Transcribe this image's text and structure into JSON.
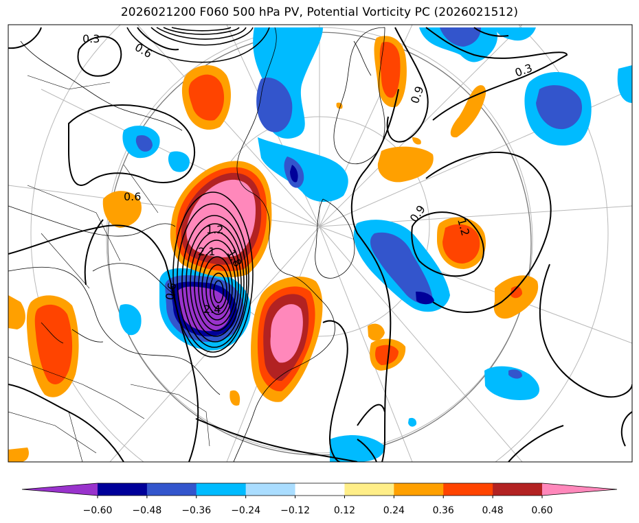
{
  "title": "2026021200 F060 500 hPa PV, Potential Vorticity PC (2026021512)",
  "contour_labels": [
    "0.3",
    "0.6",
    "0.6",
    "1.2",
    "2.1",
    "1.8",
    "2.4",
    "0.9",
    "0.9",
    "1.2",
    "0.3",
    "0.6"
  ],
  "colorbar": {
    "ticks": [
      "−0.60",
      "−0.48",
      "−0.36",
      "−0.24",
      "−0.12",
      "0.12",
      "0.24",
      "0.36",
      "0.48",
      "0.60"
    ],
    "colors": [
      "#9933cc",
      "#000099",
      "#3355cc",
      "#00bbff",
      "#aaddff",
      "#ffffff",
      "#ffee88",
      "#ffa000",
      "#ff4400",
      "#b22222",
      "#ff88bb"
    ]
  },
  "map": {
    "negative_colors": [
      "#9933cc",
      "#000099",
      "#3355cc",
      "#00bbff",
      "#aaddff"
    ],
    "positive_colors": [
      "#ffee88",
      "#ffa000",
      "#ff4400",
      "#b22222",
      "#ff88bb"
    ]
  }
}
